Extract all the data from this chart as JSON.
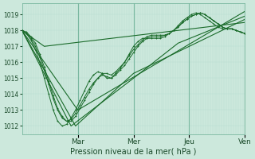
{
  "xlabel": "Pression niveau de la mer( hPa )",
  "background_color": "#cce8dc",
  "plot_bg_color": "#cce8dc",
  "grid_color_minor": "#b8ddd0",
  "grid_color_major": "#7ab8a0",
  "line_color": "#1a6b2a",
  "ylim": [
    1011.5,
    1019.7
  ],
  "yticks": [
    1012,
    1013,
    1014,
    1015,
    1016,
    1017,
    1018,
    1019
  ],
  "day_labels": [
    "Mar",
    "Mer",
    "Jeu",
    "Ven"
  ],
  "day_positions": [
    0.25,
    0.5,
    0.75,
    1.0
  ],
  "series": [
    {
      "x": [
        0.0,
        0.02,
        0.04,
        0.06,
        0.08,
        0.1,
        0.12,
        0.14,
        0.16,
        0.18,
        0.2,
        0.22,
        0.24,
        0.26,
        0.28,
        0.3,
        0.32,
        0.34,
        0.36,
        0.38,
        0.4,
        0.42,
        0.44,
        0.46,
        0.48,
        0.5,
        0.52,
        0.54,
        0.56,
        0.58,
        0.6,
        0.62,
        0.64,
        0.66,
        0.68,
        0.7,
        0.72,
        0.74,
        0.76,
        0.78,
        0.8,
        0.82,
        0.84,
        0.86,
        0.88,
        0.9,
        0.92,
        0.94,
        0.96,
        0.98,
        1.0
      ],
      "y": [
        1018.0,
        1017.8,
        1017.4,
        1016.8,
        1016.0,
        1015.0,
        1014.0,
        1013.0,
        1012.3,
        1012.0,
        1012.1,
        1012.5,
        1013.0,
        1013.6,
        1014.2,
        1014.8,
        1015.2,
        1015.4,
        1015.3,
        1015.0,
        1015.0,
        1015.3,
        1015.6,
        1016.0,
        1016.5,
        1017.0,
        1017.3,
        1017.5,
        1017.5,
        1017.5,
        1017.5,
        1017.5,
        1017.6,
        1017.8,
        1018.0,
        1018.3,
        1018.6,
        1018.8,
        1019.0,
        1019.1,
        1019.0,
        1018.8,
        1018.6,
        1018.4,
        1018.2,
        1018.1,
        1018.1,
        1018.1,
        1018.0,
        1017.9,
        1017.8
      ],
      "marker": true
    },
    {
      "x": [
        0.0,
        0.1,
        1.0
      ],
      "y": [
        1018.0,
        1017.0,
        1018.5
      ],
      "marker": false
    },
    {
      "x": [
        0.0,
        0.25,
        1.0
      ],
      "y": [
        1018.0,
        1013.0,
        1019.2
      ],
      "marker": false
    },
    {
      "x": [
        0.0,
        0.22,
        0.5,
        0.7,
        1.0
      ],
      "y": [
        1018.0,
        1012.0,
        1015.0,
        1017.2,
        1018.9
      ],
      "marker": false
    },
    {
      "x": [
        0.0,
        0.24,
        0.5,
        1.0
      ],
      "y": [
        1018.0,
        1012.0,
        1015.3,
        1018.7
      ],
      "marker": false
    },
    {
      "x": [
        0.0,
        0.02,
        0.04,
        0.06,
        0.08,
        0.1,
        0.12,
        0.14,
        0.16,
        0.18,
        0.2,
        0.22,
        0.24,
        0.26,
        0.28,
        0.3,
        0.32,
        0.34,
        0.36,
        0.38,
        0.4,
        0.42,
        0.44,
        0.46,
        0.48,
        0.5,
        0.52,
        0.54,
        0.56,
        0.58,
        0.6,
        0.62,
        0.64,
        0.66,
        0.68,
        0.7,
        0.72,
        0.74,
        0.76,
        0.78,
        0.8,
        0.82,
        0.84,
        0.86,
        0.88,
        0.9,
        0.92,
        0.94,
        0.96,
        0.98,
        1.0
      ],
      "y": [
        1018.0,
        1017.8,
        1017.5,
        1017.0,
        1016.3,
        1015.5,
        1014.6,
        1013.7,
        1013.0,
        1012.5,
        1012.3,
        1012.4,
        1012.8,
        1013.3,
        1013.8,
        1014.3,
        1014.7,
        1015.0,
        1015.2,
        1015.1,
        1015.0,
        1015.2,
        1015.5,
        1015.8,
        1016.2,
        1016.6,
        1017.0,
        1017.3,
        1017.5,
        1017.6,
        1017.6,
        1017.6,
        1017.7,
        1017.8,
        1018.0,
        1018.2,
        1018.5,
        1018.7,
        1018.9,
        1019.0,
        1019.1,
        1019.0,
        1018.8,
        1018.6,
        1018.4,
        1018.2,
        1018.1,
        1018.1,
        1018.0,
        1017.9,
        1017.8
      ],
      "marker": true
    },
    {
      "x": [
        0.0,
        0.02,
        0.04,
        0.06,
        0.08,
        0.1,
        0.12,
        0.14,
        0.16,
        0.18,
        0.2,
        0.22,
        0.24,
        0.26,
        0.28,
        0.3,
        0.32,
        0.34,
        0.36,
        0.38,
        0.4,
        0.42,
        0.44,
        0.46,
        0.48,
        0.5,
        0.52,
        0.54,
        0.56,
        0.58,
        0.6,
        0.62,
        0.64,
        0.66,
        0.68,
        0.7,
        0.72,
        0.74,
        0.76,
        0.78,
        0.8,
        0.82,
        0.84,
        0.86,
        0.88,
        0.9,
        0.92,
        0.94,
        0.96,
        0.98,
        1.0
      ],
      "y": [
        1018.0,
        1017.9,
        1017.6,
        1017.2,
        1016.5,
        1015.7,
        1014.8,
        1013.9,
        1013.1,
        1012.6,
        1012.3,
        1012.3,
        1012.6,
        1013.1,
        1013.6,
        1014.1,
        1014.6,
        1015.0,
        1015.3,
        1015.3,
        1015.2,
        1015.4,
        1015.7,
        1016.0,
        1016.4,
        1016.8,
        1017.1,
        1017.4,
        1017.6,
        1017.7,
        1017.7,
        1017.7,
        1017.7,
        1017.8,
        1018.0,
        1018.2,
        1018.5,
        1018.7,
        1018.9,
        1019.0,
        1019.1,
        1019.0,
        1018.8,
        1018.6,
        1018.4,
        1018.2,
        1018.1,
        1018.1,
        1018.0,
        1017.9,
        1017.8
      ],
      "marker": true
    }
  ]
}
